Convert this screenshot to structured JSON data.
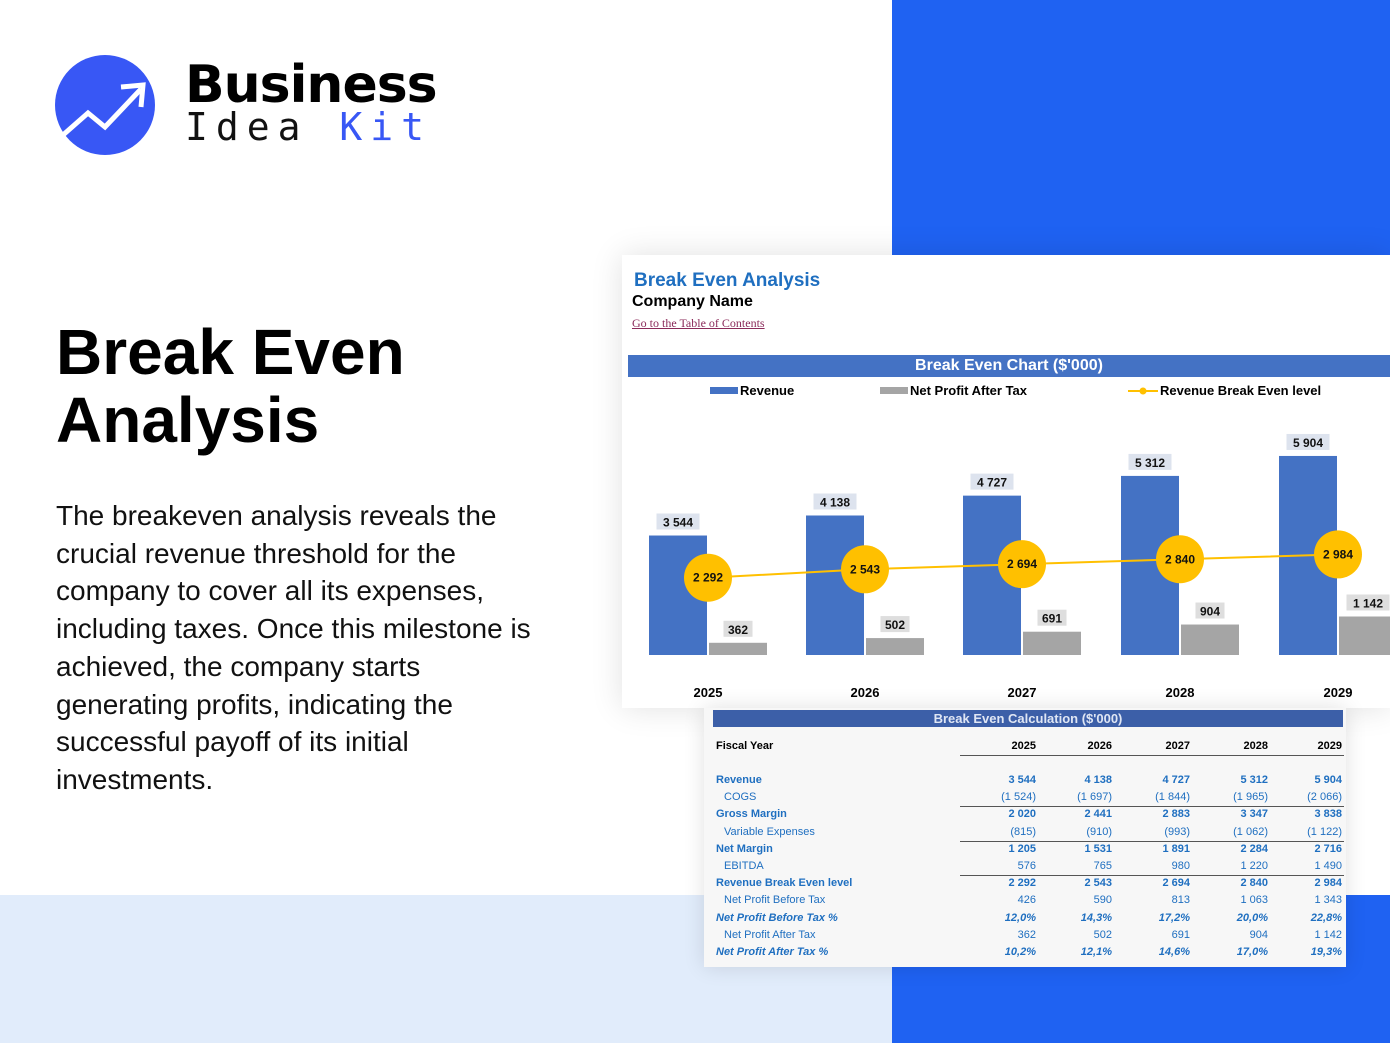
{
  "brand": {
    "word1": "Business",
    "word2a": "Idea",
    "word2b": "Kit",
    "accent": "#3857f5"
  },
  "hero": {
    "title_line1": "Break Even",
    "title_line2": "Analysis",
    "description": "The breakeven analysis reveals the crucial revenue threshold for the company to cover all its expenses, including taxes. Once this milestone is achieved, the company starts generating profits, indicating the successful payoff of its initial investments."
  },
  "sheet": {
    "title": "Break Even Analysis",
    "company": "Company Name",
    "toc_link": "Go to the Table of Contents"
  },
  "chart_data": {
    "type": "bar",
    "title": "Break Even Chart ($'000)",
    "categories": [
      "2025",
      "2026",
      "2027",
      "2028",
      "2029"
    ],
    "series": [
      {
        "name": "Revenue",
        "type": "bar",
        "color": "#4472c4",
        "values": [
          3544,
          4138,
          4727,
          5312,
          5904
        ]
      },
      {
        "name": "Net Profit After Tax",
        "type": "bar",
        "color": "#a5a5a5",
        "values": [
          362,
          502,
          691,
          904,
          1142
        ]
      },
      {
        "name": "Revenue Break Even level",
        "type": "line",
        "color": "#ffc000",
        "values": [
          2292,
          2543,
          2694,
          2840,
          2984
        ]
      }
    ],
    "legend": "top",
    "grid": false,
    "ylim": [
      0,
      7000
    ],
    "labels": {
      "Revenue": [
        "3 544",
        "4 138",
        "4 727",
        "5 312",
        "5 904"
      ],
      "Net Profit After Tax": [
        "362",
        "502",
        "691",
        "904",
        "1 142"
      ],
      "Revenue Break Even level": [
        "2 292",
        "2 543",
        "2 694",
        "2 840",
        "2 984"
      ]
    }
  },
  "table": {
    "title": "Break Even Calculation ($'000)",
    "header": "Fiscal Year",
    "years": [
      "2025",
      "2026",
      "2027",
      "2028",
      "2029"
    ],
    "rows": [
      {
        "label": "Revenue",
        "style": "b",
        "values": [
          "3 544",
          "4 138",
          "4 727",
          "5 312",
          "5 904"
        ]
      },
      {
        "label": "COGS",
        "style": "n",
        "values": [
          "(1 524)",
          "(1 697)",
          "(1 844)",
          "(1 965)",
          "(2 066)"
        ]
      },
      {
        "label": "Gross Margin",
        "style": "b",
        "values": [
          "2 020",
          "2 441",
          "2 883",
          "3 347",
          "3 838"
        ]
      },
      {
        "label": "Variable Expenses",
        "style": "n",
        "values": [
          "(815)",
          "(910)",
          "(993)",
          "(1 062)",
          "(1 122)"
        ]
      },
      {
        "label": "Net Margin",
        "style": "b",
        "values": [
          "1 205",
          "1 531",
          "1 891",
          "2 284",
          "2 716"
        ]
      },
      {
        "label": "EBITDA",
        "style": "n",
        "values": [
          "576",
          "765",
          "980",
          "1 220",
          "1 490"
        ]
      },
      {
        "label": "Revenue Break Even level",
        "style": "b",
        "values": [
          "2 292",
          "2 543",
          "2 694",
          "2 840",
          "2 984"
        ]
      },
      {
        "label": "Net Profit Before Tax",
        "style": "n",
        "values": [
          "426",
          "590",
          "813",
          "1 063",
          "1 343"
        ]
      },
      {
        "label": "Net Profit Before Tax %",
        "style": "b it",
        "values": [
          "12,0%",
          "14,3%",
          "17,2%",
          "20,0%",
          "22,8%"
        ]
      },
      {
        "label": "Net Profit After Tax",
        "style": "n",
        "values": [
          "362",
          "502",
          "691",
          "904",
          "1 142"
        ]
      },
      {
        "label": "Net Profit After Tax %",
        "style": "b it",
        "values": [
          "10,2%",
          "12,1%",
          "14,6%",
          "17,0%",
          "19,3%"
        ]
      }
    ]
  }
}
